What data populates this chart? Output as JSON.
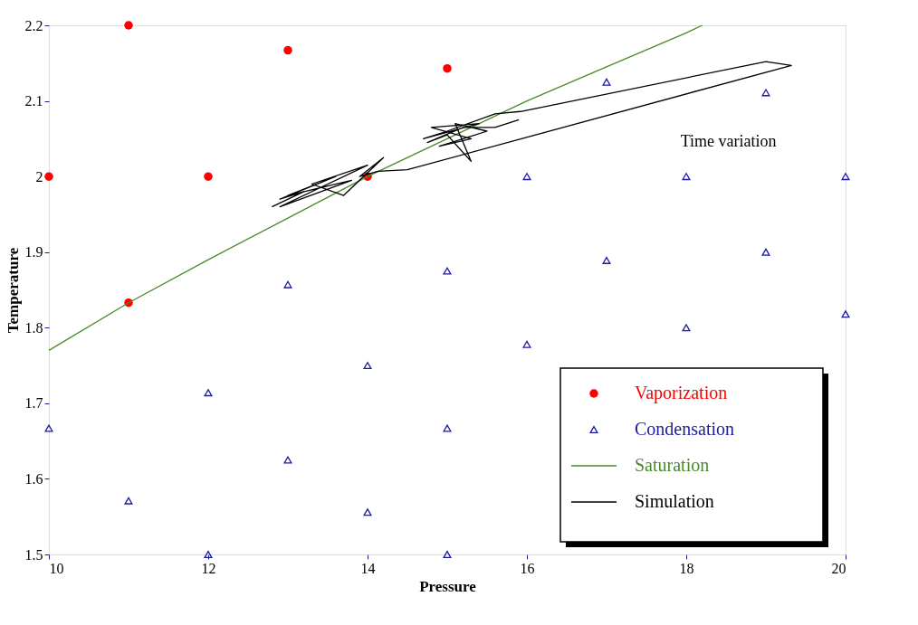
{
  "chart_data": {
    "type": "scatter",
    "xlabel": "Pressure",
    "ylabel": "Temperature",
    "xlim": [
      10,
      20
    ],
    "ylim": [
      1.5,
      2.2
    ],
    "xticks": [
      10,
      12,
      14,
      16,
      18,
      20
    ],
    "yticks": [
      1.5,
      1.6,
      1.7,
      1.8,
      1.9,
      2,
      2.1,
      2.2
    ],
    "grid": false,
    "legend": "bottom right",
    "annotations": [
      "Time variation"
    ],
    "series": [
      {
        "name": "Vaporization",
        "marker": "circle",
        "color": "#ff0000",
        "x": [
          10,
          11,
          11,
          12,
          13,
          14,
          15
        ],
        "values": [
          2.0,
          2.2,
          1.833,
          2.0,
          2.167,
          2.0,
          2.143
        ]
      },
      {
        "name": "Condensation",
        "marker": "triangle",
        "color": "#1a1aa0",
        "x": [
          10,
          11,
          12,
          12,
          13,
          13,
          14,
          14,
          15,
          15,
          15,
          16,
          16,
          17,
          17,
          18,
          18,
          19,
          19,
          20,
          20
        ],
        "values": [
          1.667,
          1.571,
          1.714,
          1.5,
          1.857,
          1.625,
          1.75,
          1.556,
          1.875,
          1.667,
          1.5,
          2.0,
          1.778,
          2.125,
          1.889,
          2.0,
          1.8,
          2.111,
          1.9,
          2.0,
          1.818
        ]
      },
      {
        "name": "Saturation",
        "type": "line",
        "color": "#4a8a2a",
        "x": [
          10,
          11,
          12,
          13,
          14,
          15,
          16,
          17,
          18,
          18.2
        ],
        "values": [
          1.77,
          1.833,
          1.89,
          1.945,
          2.0,
          2.05,
          2.1,
          2.145,
          2.19,
          2.2
        ]
      },
      {
        "name": "Simulation",
        "type": "line",
        "color": "#000000",
        "x": [
          12.8,
          13.2,
          12.9,
          13.6,
          13.0,
          13.8,
          12.9,
          13.5,
          13.9,
          13.1,
          14.0,
          13.3,
          13.7,
          14.2,
          13.9,
          14.13,
          14.5,
          19.32,
          19.0,
          15.92,
          15.6,
          15.0,
          14.7,
          15.4,
          14.8,
          15.3,
          14.9,
          15.5,
          15.1,
          15.3,
          15.0,
          14.75,
          15.2,
          15.6,
          15.9
        ],
        "values": [
          1.96,
          1.98,
          1.97,
          2.0,
          1.975,
          1.995,
          1.96,
          1.99,
          2.01,
          1.97,
          2.015,
          1.99,
          1.975,
          2.025,
          2.0,
          2.007,
          2.009,
          2.147,
          2.152,
          2.086,
          2.083,
          2.06,
          2.05,
          2.07,
          2.065,
          2.05,
          2.04,
          2.06,
          2.07,
          2.02,
          2.055,
          2.045,
          2.065,
          2.065,
          2.075
        ]
      }
    ]
  }
}
